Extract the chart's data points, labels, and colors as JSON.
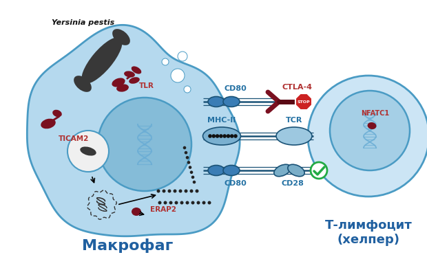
{
  "macrophage_label": "Макрофаг",
  "tlymphocyte_label": "Т-лимфоцит\n(хелпер)",
  "yersinia_label": "Yersinia pestis",
  "tlr_label": "TLR",
  "ticam2_label": "TICAM2",
  "erap2_label": "ERAP2",
  "cd80_top_label": "CD80",
  "mhcii_label": "MHC-II",
  "cd80_bot_label": "CD80",
  "ctla4_label": "CTLA-4",
  "tcr_label": "TCR",
  "cd28_label": "CD28",
  "nfatc1_label": "NFATC1",
  "stop_label": "STOP",
  "mac_color": "#b5d9ee",
  "mac_edge": "#4a9bc4",
  "nuc_color": "#85bcd8",
  "nuc_edge": "#4a9bc4",
  "lymph_color": "#cce5f5",
  "lymph_edge": "#4a9bc4",
  "lymph_nuc_color": "#a5cfe6",
  "lymph_nuc_edge": "#4a9bc4",
  "bact_color": "#383838",
  "dark_red": "#7a1020",
  "crimson": "#b03030",
  "blue_dark": "#1a5276",
  "blue_mid": "#2471a3",
  "blue_light": "#4a8fc0",
  "blue_barrel": "#3a7db5",
  "blue_barrel2": "#7aaec8",
  "stop_red": "#cc2222",
  "check_green": "#22aa44",
  "label_blue": "#2060a0",
  "white": "#ffffff",
  "phago_white": "#f0f0f0",
  "receptor_bar_color": "#2060a0",
  "peptide_dot_color": "#222222"
}
